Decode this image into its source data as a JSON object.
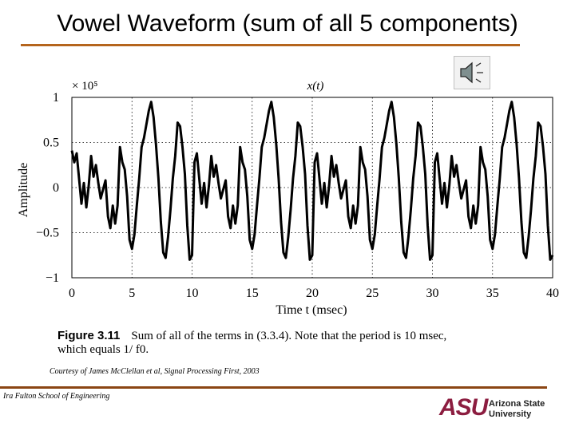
{
  "slide": {
    "title": "Vowel Waveform (sum of all 5 components)",
    "courtesy": "Courtesy of James McClellan et al, Signal Processing First, 2003",
    "footer_school": "Ira Fulton School of Engineering",
    "logo": {
      "mark": "ASU",
      "name_line1": "Arizona State",
      "name_line2": "University",
      "color": "#8c1d40"
    },
    "speaker_icon": "speaker-icon",
    "accent_color": "#b5651d"
  },
  "figure": {
    "label": "Figure 3.11",
    "caption_line1": "Sum of all of the terms in (3.3.4). Note that the period is 10 msec,",
    "caption_line2": "which equals 1/ f0."
  },
  "chart_data": {
    "type": "line",
    "title": "x(t)",
    "scale_note": "× 10⁵",
    "xlabel": "Time t (msec)",
    "ylabel": "Amplitude",
    "xlim": [
      0,
      40
    ],
    "ylim": [
      -1,
      1
    ],
    "xticks": [
      0,
      5,
      10,
      15,
      20,
      25,
      30,
      35,
      40
    ],
    "yticks": [
      -1,
      -0.5,
      0,
      0.5,
      1
    ],
    "ytick_labels": [
      "−1",
      "−0.5",
      "0",
      "0.5",
      "1"
    ],
    "grid": true,
    "period_ms": 10,
    "series": [
      {
        "x": [
          0,
          0.2,
          0.4,
          0.6,
          0.8,
          1.0,
          1.2,
          1.4,
          1.6,
          1.8,
          2.0,
          2.2,
          2.4,
          2.6,
          2.8,
          3.0,
          3.2,
          3.4,
          3.6,
          3.8,
          4.0,
          4.2,
          4.4,
          4.6,
          4.8,
          5.0,
          5.2,
          5.4,
          5.6,
          5.8,
          6.0,
          6.2,
          6.4,
          6.6,
          6.8,
          7.0,
          7.2,
          7.4,
          7.6,
          7.8,
          8.0,
          8.2,
          8.4,
          8.6,
          8.8,
          9.0,
          9.2,
          9.4,
          9.6,
          9.8,
          10.0
        ],
        "y": [
          0.41,
          0.28,
          0.38,
          0.1,
          -0.18,
          0.05,
          -0.22,
          0.02,
          0.35,
          0.12,
          0.25,
          0.05,
          -0.12,
          -0.02,
          0.08,
          -0.32,
          -0.45,
          -0.2,
          -0.4,
          -0.2,
          0.45,
          0.28,
          0.2,
          -0.1,
          -0.58,
          -0.68,
          -0.52,
          -0.2,
          0.1,
          0.45,
          0.55,
          0.7,
          0.85,
          0.95,
          0.78,
          0.48,
          0.1,
          -0.38,
          -0.72,
          -0.78,
          -0.55,
          -0.25,
          0.1,
          0.35,
          0.72,
          0.68,
          0.45,
          0.15,
          -0.42,
          -0.8,
          -0.75
        ]
      }
    ]
  }
}
